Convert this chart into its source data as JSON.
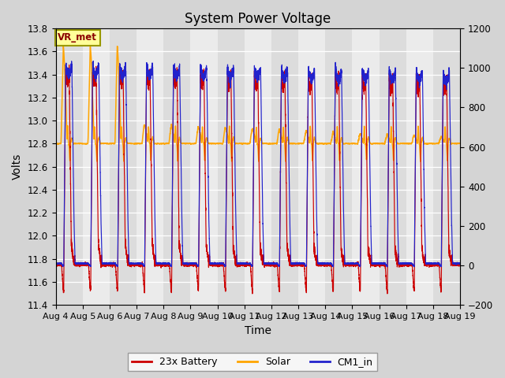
{
  "title": "System Power Voltage",
  "xlabel": "Time",
  "ylabel": "Volts",
  "ylim_left": [
    11.4,
    13.8
  ],
  "ylim_right": [
    -200,
    1200
  ],
  "yticks_left": [
    11.4,
    11.6,
    11.8,
    12.0,
    12.2,
    12.4,
    12.6,
    12.8,
    13.0,
    13.2,
    13.4,
    13.6,
    13.8
  ],
  "yticks_right": [
    -200,
    0,
    200,
    400,
    600,
    800,
    1000,
    1200
  ],
  "xtick_labels": [
    "Aug 4",
    "Aug 5",
    "Aug 6",
    "Aug 7",
    "Aug 8",
    "Aug 9",
    "Aug 10",
    "Aug 11",
    "Aug 12",
    "Aug 13",
    "Aug 14",
    "Aug 15",
    "Aug 16",
    "Aug 17",
    "Aug 18",
    "Aug 19"
  ],
  "colors": {
    "battery": "#CC0000",
    "solar": "#FFA500",
    "cm1": "#2222CC",
    "background": "#D8D8D8",
    "plot_bg_dark": "#D0D0D0",
    "plot_bg_light": "#E8E8E8",
    "grid": "#FFFFFF"
  },
  "n_days": 15,
  "vr_met_label": "VR_met",
  "legend_entries": [
    "23x Battery",
    "Solar",
    "CM1_in"
  ],
  "title_fontsize": 12,
  "label_fontsize": 10,
  "tick_fontsize": 8.5
}
